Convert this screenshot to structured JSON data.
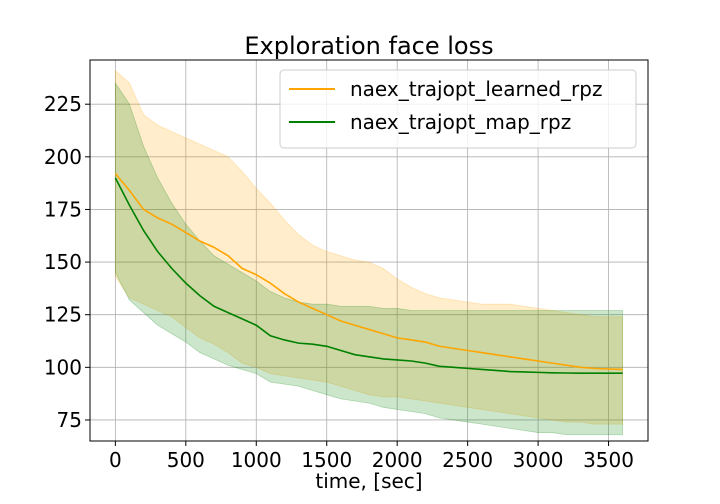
{
  "chart_data": {
    "type": "line",
    "title": "Exploration face loss",
    "xlabel": "time, [sec]",
    "ylabel": "",
    "xlim": [
      -180,
      3780
    ],
    "ylim": [
      65,
      246
    ],
    "xticks": [
      0,
      500,
      1000,
      1500,
      2000,
      2500,
      3000,
      3500
    ],
    "yticks": [
      75,
      100,
      125,
      150,
      175,
      200,
      225
    ],
    "grid": true,
    "legend_position": "top-right",
    "x": [
      0,
      100,
      200,
      300,
      400,
      500,
      600,
      700,
      800,
      900,
      1000,
      1100,
      1200,
      1300,
      1400,
      1500,
      1600,
      1700,
      1800,
      1900,
      2000,
      2100,
      2200,
      2300,
      2400,
      2500,
      2600,
      2700,
      2800,
      2900,
      3000,
      3100,
      3200,
      3300,
      3400,
      3500,
      3600
    ],
    "series": [
      {
        "name": "naex_trajopt_learned_rpz",
        "color": "#ffa500",
        "fill_color": "#ffa500",
        "values": [
          192,
          184,
          175,
          171,
          168,
          164,
          160,
          157,
          153,
          147,
          144,
          140,
          135,
          131,
          128,
          125,
          122,
          120,
          118,
          116,
          114,
          113,
          112,
          110,
          109,
          108,
          107,
          106,
          105,
          104,
          103,
          102,
          101,
          100,
          99.5,
          99.2,
          99
        ],
        "upper": [
          241,
          235,
          220,
          215,
          212,
          209,
          206,
          203,
          200,
          193,
          185,
          178,
          170,
          163,
          158,
          155,
          153,
          151,
          150,
          147,
          142,
          138,
          135,
          133,
          132,
          131,
          130,
          130,
          130,
          129,
          128,
          127,
          126,
          125,
          124,
          124,
          124
        ],
        "lower": [
          143,
          133,
          130,
          127,
          124,
          119,
          114,
          111,
          107,
          102,
          100,
          97,
          96,
          95,
          94,
          93,
          91,
          89,
          87,
          86,
          86,
          85,
          84,
          83,
          82,
          81,
          80,
          79,
          78,
          77,
          76,
          75,
          74,
          74,
          73,
          73,
          73
        ]
      },
      {
        "name": "naex_trajopt_map_rpz",
        "color": "#008000",
        "fill_color": "#008000",
        "values": [
          190,
          177,
          165,
          155,
          147,
          140,
          134,
          129,
          126,
          123,
          120,
          115,
          113,
          111.5,
          111,
          110,
          108,
          106,
          105,
          104,
          103.5,
          103,
          102,
          100.5,
          100,
          99.5,
          99,
          98.5,
          98,
          97.8,
          97.6,
          97.4,
          97.3,
          97.2,
          97.2,
          97.2,
          97.2
        ],
        "upper": [
          235,
          225,
          205,
          190,
          178,
          168,
          160,
          153,
          149,
          145,
          141,
          136,
          133,
          131,
          130,
          130,
          129,
          129,
          129,
          128,
          128,
          127,
          127,
          127,
          127,
          127,
          127,
          127,
          127,
          127,
          127,
          127,
          127,
          127,
          127,
          127,
          127
        ],
        "lower": [
          145,
          132,
          126,
          120,
          116,
          112,
          107,
          104,
          101,
          99,
          97,
          93,
          92,
          91,
          89,
          87,
          85,
          84,
          83,
          81,
          80,
          79,
          78,
          76,
          75,
          74,
          73,
          72,
          71,
          70,
          69,
          69,
          68,
          68,
          68,
          68,
          68
        ]
      }
    ]
  }
}
